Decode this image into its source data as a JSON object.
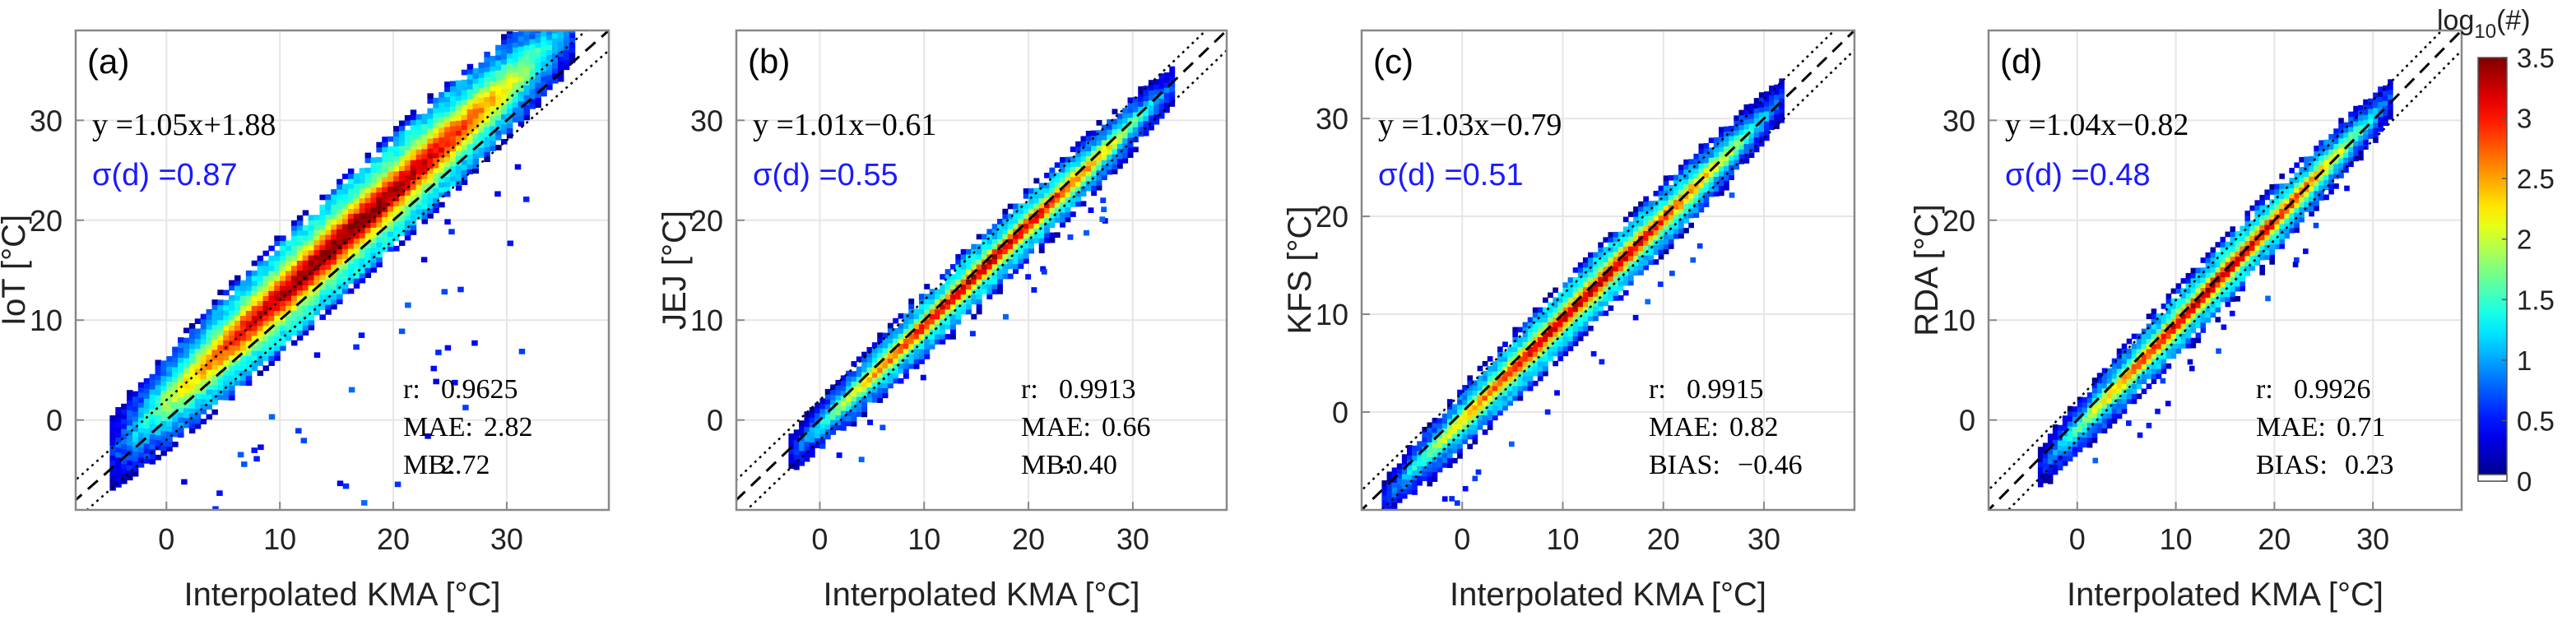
{
  "figure": {
    "colorbar": {
      "label_base": "log",
      "label_sub": "10",
      "label_rest": "(#)",
      "ticks": [
        "3.5",
        "3",
        "2.5",
        "2",
        "1.5",
        "1",
        "0.5",
        "0"
      ],
      "tick_values": [
        3.5,
        3,
        2.5,
        2,
        1.5,
        1,
        0.5,
        0
      ],
      "range": [
        0,
        3.5
      ],
      "colormap": "jet"
    },
    "colors": {
      "sigma_text": "#1a1aff",
      "frame": "#888888",
      "grid": "#e6e6e6",
      "one_to_one": "#000000"
    }
  },
  "chart_data": [
    {
      "type": "heatmap",
      "panel_label": "(a)",
      "xlabel": "Interpolated KMA [°C]",
      "ylabel": "IoT [°C]",
      "xlim": [
        -8,
        39
      ],
      "ylim": [
        -9,
        39
      ],
      "xticks": [
        "0",
        "10",
        "20",
        "30"
      ],
      "xtick_values": [
        0,
        10,
        20,
        30
      ],
      "yticks": [
        "0",
        "10",
        "20",
        "30"
      ],
      "ytick_values": [
        0,
        10,
        20,
        30
      ],
      "grid": true,
      "regression_text": "y =1.05x+1.88",
      "regression": {
        "slope": 1.05,
        "intercept": 1.88
      },
      "sigma_text": "σ(d) =0.87",
      "sigma": 0.87,
      "stats": [
        {
          "label": "r:",
          "value": "0.9625"
        },
        {
          "label": "MAE:",
          "value": "2.82"
        },
        {
          "label": "MB:",
          "value": "2.72"
        }
      ],
      "data_extent_x": [
        -5,
        36
      ],
      "density_peak_log10": 3.5,
      "spread_core": 2.3,
      "spread_edge": 5.0,
      "reference_lines": "1:1 dashed; ±2 dotted"
    },
    {
      "type": "heatmap",
      "panel_label": "(b)",
      "xlabel": "Interpolated KMA [°C]",
      "ylabel": "JEJ [°C]",
      "xlim": [
        -8,
        39
      ],
      "ylim": [
        -9,
        39
      ],
      "xticks": [
        "0",
        "10",
        "20",
        "30"
      ],
      "xtick_values": [
        0,
        10,
        20,
        30
      ],
      "yticks": [
        "0",
        "10",
        "20",
        "30"
      ],
      "ytick_values": [
        0,
        10,
        20,
        30
      ],
      "grid": true,
      "regression_text": "y =1.01x−0.61",
      "regression": {
        "slope": 1.01,
        "intercept": -0.61
      },
      "sigma_text": "σ(d) =0.55",
      "sigma": 0.55,
      "stats": [
        {
          "label": "r:",
          "value": "0.9913"
        },
        {
          "label": "MAE:",
          "value": "0.66"
        },
        {
          "label": "MB:",
          "value": "-0.40"
        }
      ],
      "data_extent_x": [
        -3,
        34
      ],
      "density_peak_log10": 3.3,
      "spread_core": 1.0,
      "spread_edge": 2.6,
      "reference_lines": "1:1 dashed; ±2 dotted"
    },
    {
      "type": "heatmap",
      "panel_label": "(c)",
      "xlabel": "Interpolated KMA [°C]",
      "ylabel": "KFS [°C]",
      "xlim": [
        -10,
        39
      ],
      "ylim": [
        -10,
        39
      ],
      "xticks": [
        "0",
        "10",
        "20",
        "30"
      ],
      "xtick_values": [
        0,
        10,
        20,
        30
      ],
      "yticks": [
        "0",
        "10",
        "20",
        "30"
      ],
      "ytick_values": [
        0,
        10,
        20,
        30
      ],
      "grid": true,
      "regression_text": "y =1.03x−0.79",
      "regression": {
        "slope": 1.03,
        "intercept": -0.79
      },
      "sigma_text": "σ(d) =0.51",
      "sigma": 0.51,
      "stats": [
        {
          "label": "r:",
          "value": "0.9915"
        },
        {
          "label": "MAE:",
          "value": "0.82"
        },
        {
          "label": "BIAS:",
          "value": "−0.46"
        }
      ],
      "data_extent_x": [
        -8,
        32
      ],
      "density_peak_log10": 3.3,
      "spread_core": 1.1,
      "spread_edge": 2.8,
      "reference_lines": "1:1 dashed; ±2 dotted"
    },
    {
      "type": "heatmap",
      "panel_label": "(d)",
      "xlabel": "Interpolated KMA [°C]",
      "ylabel": "RDA [°C]",
      "xlim": [
        -9,
        39
      ],
      "ylim": [
        -9,
        39
      ],
      "xticks": [
        "0",
        "10",
        "20",
        "30"
      ],
      "xtick_values": [
        0,
        10,
        20,
        30
      ],
      "yticks": [
        "0",
        "10",
        "20",
        "30"
      ],
      "ytick_values": [
        0,
        10,
        20,
        30
      ],
      "grid": true,
      "regression_text": "y =1.04x−0.82",
      "regression": {
        "slope": 1.04,
        "intercept": -0.82
      },
      "sigma_text": "σ(d) =0.48",
      "sigma": 0.48,
      "stats": [
        {
          "label": "r:",
          "value": "0.9926"
        },
        {
          "label": "MAE:",
          "value": "0.71"
        },
        {
          "label": "BIAS:",
          "value": "0.23"
        }
      ],
      "data_extent_x": [
        -4,
        32
      ],
      "density_peak_log10": 3.3,
      "spread_core": 1.0,
      "spread_edge": 2.6,
      "reference_lines": "1:1 dashed; ±2 dotted"
    }
  ]
}
